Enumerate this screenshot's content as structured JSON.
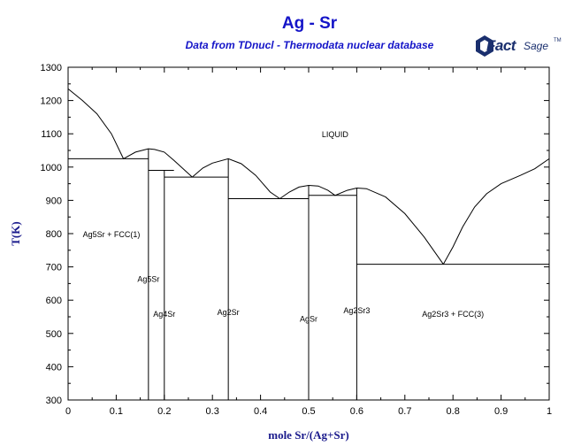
{
  "title": "Ag - Sr",
  "subtitle": "Data from TDnucl - Thermodata nuclear database",
  "logo": {
    "fact": "Fact",
    "sage": "Sage",
    "tm": "TM"
  },
  "colors": {
    "title": "#1414c8",
    "axis_label": "#1a1a8c",
    "line": "#000000",
    "logo": "#1a2f6e"
  },
  "chart_data": {
    "type": "line",
    "title": "Ag - Sr",
    "subtitle": "Data from TDnucl - Thermodata nuclear database",
    "xlabel": "mole Sr/(Ag+Sr)",
    "ylabel": "T(K)",
    "xlim": [
      0,
      1
    ],
    "ylim": [
      300,
      1300
    ],
    "xticks": [
      0,
      0.1,
      0.2,
      0.3,
      0.4,
      0.5,
      0.6,
      0.7,
      0.8,
      0.9,
      1
    ],
    "yticks": [
      300,
      400,
      500,
      600,
      700,
      800,
      900,
      1000,
      1100,
      1200,
      1300
    ],
    "xtick_labels": [
      "0",
      "0.1",
      "0.2",
      "0.3",
      "0.4",
      "0.5",
      "0.6",
      "0.7",
      "0.8",
      "0.9",
      "1"
    ],
    "ytick_labels": [
      "300",
      "400",
      "500",
      "600",
      "700",
      "800",
      "900",
      "1000",
      "1100",
      "1200",
      "1300"
    ],
    "grid": false,
    "liquidus": [
      [
        [
          0,
          1235
        ],
        [
          0.03,
          1200
        ],
        [
          0.06,
          1160
        ],
        [
          0.09,
          1100
        ],
        [
          0.115,
          1025
        ],
        [
          0.14,
          1045
        ],
        [
          0.167,
          1055
        ],
        [
          0.18,
          1053
        ],
        [
          0.2,
          1045
        ],
        [
          0.22,
          1020
        ],
        [
          0.258,
          970
        ]
      ],
      [
        [
          0.258,
          970
        ],
        [
          0.28,
          997
        ],
        [
          0.3,
          1012
        ],
        [
          0.333,
          1025
        ],
        [
          0.36,
          1010
        ],
        [
          0.39,
          975
        ],
        [
          0.42,
          925
        ],
        [
          0.44,
          905
        ]
      ],
      [
        [
          0.44,
          905
        ],
        [
          0.46,
          925
        ],
        [
          0.48,
          940
        ],
        [
          0.5,
          945
        ],
        [
          0.52,
          943
        ],
        [
          0.54,
          930
        ],
        [
          0.555,
          915
        ],
        [
          0.58,
          930
        ],
        [
          0.6,
          937
        ],
        [
          0.62,
          935
        ],
        [
          0.66,
          910
        ],
        [
          0.7,
          860
        ],
        [
          0.74,
          790
        ],
        [
          0.78,
          708
        ]
      ],
      [
        [
          0.78,
          708
        ],
        [
          0.8,
          760
        ],
        [
          0.82,
          820
        ],
        [
          0.845,
          880
        ],
        [
          0.87,
          920
        ],
        [
          0.9,
          950
        ],
        [
          0.94,
          975
        ],
        [
          0.97,
          995
        ],
        [
          1.0,
          1025
        ]
      ]
    ],
    "isotherms": [
      {
        "x": [
          0,
          0.167
        ],
        "y": 1025
      },
      {
        "x": [
          0.167,
          0.22
        ],
        "y": 990
      },
      {
        "x": [
          0.2,
          0.333
        ],
        "y": 970
      },
      {
        "x": [
          0.333,
          0.5
        ],
        "y": 905
      },
      {
        "x": [
          0.5,
          0.6
        ],
        "y": 915
      },
      {
        "x": [
          0.6,
          1.0
        ],
        "y": 708
      }
    ],
    "compound_lines": [
      {
        "x": 0.167,
        "y": [
          300,
          1055
        ]
      },
      {
        "x": 0.2,
        "y": [
          300,
          990
        ]
      },
      {
        "x": 0.333,
        "y": [
          300,
          1025
        ]
      },
      {
        "x": 0.5,
        "y": [
          300,
          945
        ]
      },
      {
        "x": 0.6,
        "y": [
          300,
          937
        ]
      }
    ],
    "annotations": [
      {
        "text": "LIQUID",
        "x": 0.555,
        "y": 1090
      },
      {
        "text": "Ag5Sr + FCC(1)",
        "x": 0.09,
        "y": 790
      },
      {
        "text": "Ag5Sr",
        "x": 0.167,
        "y": 655
      },
      {
        "text": "Ag4Sr",
        "x": 0.2,
        "y": 550
      },
      {
        "text": "Ag2Sr",
        "x": 0.333,
        "y": 555
      },
      {
        "text": "AgSr",
        "x": 0.5,
        "y": 535
      },
      {
        "text": "Ag2Sr3",
        "x": 0.6,
        "y": 560
      },
      {
        "text": "Ag2Sr3 + FCC(3)",
        "x": 0.8,
        "y": 550
      }
    ]
  }
}
